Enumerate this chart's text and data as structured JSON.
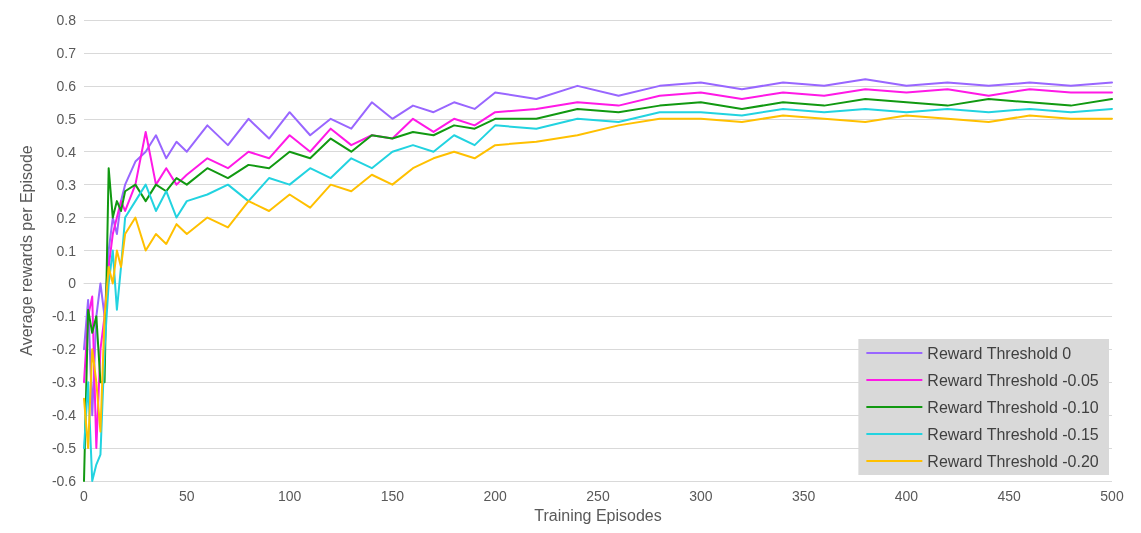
{
  "chart_data": {
    "type": "line",
    "xlabel": "Training Episodes",
    "ylabel": "Average rewards per Episode",
    "x": [
      0,
      2,
      4,
      6,
      8,
      10,
      12,
      14,
      16,
      18,
      20,
      25,
      30,
      35,
      40,
      45,
      50,
      60,
      70,
      80,
      90,
      100,
      110,
      120,
      130,
      140,
      150,
      160,
      170,
      180,
      190,
      200,
      220,
      240,
      260,
      280,
      300,
      320,
      340,
      360,
      380,
      400,
      420,
      440,
      460,
      480,
      500
    ],
    "series": [
      {
        "name": "Reward Threshold 0",
        "color": "#9966ff",
        "values": [
          -0.2,
          -0.05,
          -0.4,
          -0.1,
          0.0,
          -0.1,
          0.1,
          0.2,
          0.15,
          0.25,
          0.3,
          0.37,
          0.4,
          0.45,
          0.38,
          0.43,
          0.4,
          0.48,
          0.42,
          0.5,
          0.44,
          0.52,
          0.45,
          0.5,
          0.47,
          0.55,
          0.5,
          0.54,
          0.52,
          0.55,
          0.53,
          0.58,
          0.56,
          0.6,
          0.57,
          0.6,
          0.61,
          0.59,
          0.61,
          0.6,
          0.62,
          0.6,
          0.61,
          0.6,
          0.61,
          0.6,
          0.61
        ]
      },
      {
        "name": "Reward Threshold -0.05",
        "color": "#ff19e6",
        "values": [
          -0.3,
          -0.1,
          -0.04,
          -0.5,
          -0.2,
          -0.1,
          0.05,
          0.15,
          0.2,
          0.25,
          0.22,
          0.3,
          0.46,
          0.3,
          0.35,
          0.3,
          0.33,
          0.38,
          0.35,
          0.4,
          0.38,
          0.45,
          0.4,
          0.47,
          0.42,
          0.45,
          0.44,
          0.5,
          0.46,
          0.5,
          0.48,
          0.52,
          0.53,
          0.55,
          0.54,
          0.57,
          0.58,
          0.56,
          0.58,
          0.57,
          0.59,
          0.58,
          0.59,
          0.57,
          0.59,
          0.58,
          0.58
        ]
      },
      {
        "name": "Reward Threshold -0.10",
        "color": "#119911",
        "values": [
          -0.6,
          -0.08,
          -0.15,
          -0.1,
          -0.3,
          -0.3,
          0.35,
          0.2,
          0.25,
          0.22,
          0.28,
          0.3,
          0.25,
          0.3,
          0.28,
          0.32,
          0.3,
          0.35,
          0.32,
          0.36,
          0.35,
          0.4,
          0.38,
          0.44,
          0.4,
          0.45,
          0.44,
          0.46,
          0.45,
          0.48,
          0.47,
          0.5,
          0.5,
          0.53,
          0.52,
          0.54,
          0.55,
          0.53,
          0.55,
          0.54,
          0.56,
          0.55,
          0.54,
          0.56,
          0.55,
          0.54,
          0.56
        ]
      },
      {
        "name": "Reward Threshold -0.15",
        "color": "#22d3e0",
        "values": [
          -0.5,
          -0.3,
          -0.6,
          -0.55,
          -0.52,
          -0.2,
          0.0,
          0.1,
          -0.08,
          0.05,
          0.2,
          0.25,
          0.3,
          0.22,
          0.28,
          0.2,
          0.25,
          0.27,
          0.3,
          0.25,
          0.32,
          0.3,
          0.35,
          0.32,
          0.38,
          0.35,
          0.4,
          0.42,
          0.4,
          0.45,
          0.42,
          0.48,
          0.47,
          0.5,
          0.49,
          0.52,
          0.52,
          0.51,
          0.53,
          0.52,
          0.53,
          0.52,
          0.53,
          0.52,
          0.53,
          0.52,
          0.53
        ]
      },
      {
        "name": "Reward Threshold -0.20",
        "color": "#ffc000",
        "values": [
          -0.35,
          -0.5,
          -0.2,
          -0.3,
          -0.45,
          -0.1,
          0.05,
          0.0,
          0.1,
          0.05,
          0.15,
          0.2,
          0.1,
          0.15,
          0.12,
          0.18,
          0.15,
          0.2,
          0.17,
          0.25,
          0.22,
          0.27,
          0.23,
          0.3,
          0.28,
          0.33,
          0.3,
          0.35,
          0.38,
          0.4,
          0.38,
          0.42,
          0.43,
          0.45,
          0.48,
          0.5,
          0.5,
          0.49,
          0.51,
          0.5,
          0.49,
          0.51,
          0.5,
          0.49,
          0.51,
          0.5,
          0.5
        ]
      }
    ],
    "xlim": [
      0,
      500
    ],
    "xticks": [
      0,
      50,
      100,
      150,
      200,
      250,
      300,
      350,
      400,
      450,
      500
    ],
    "ylim": [
      -0.6,
      0.8
    ],
    "yticks": [
      -0.6,
      -0.5,
      -0.4,
      -0.3,
      -0.2,
      -0.1,
      0,
      0.1,
      0.2,
      0.3,
      0.4,
      0.5,
      0.6,
      0.7,
      0.8
    ],
    "grid": "y",
    "legend": "bottom right",
    "marker": "none",
    "line_style": "solid"
  }
}
